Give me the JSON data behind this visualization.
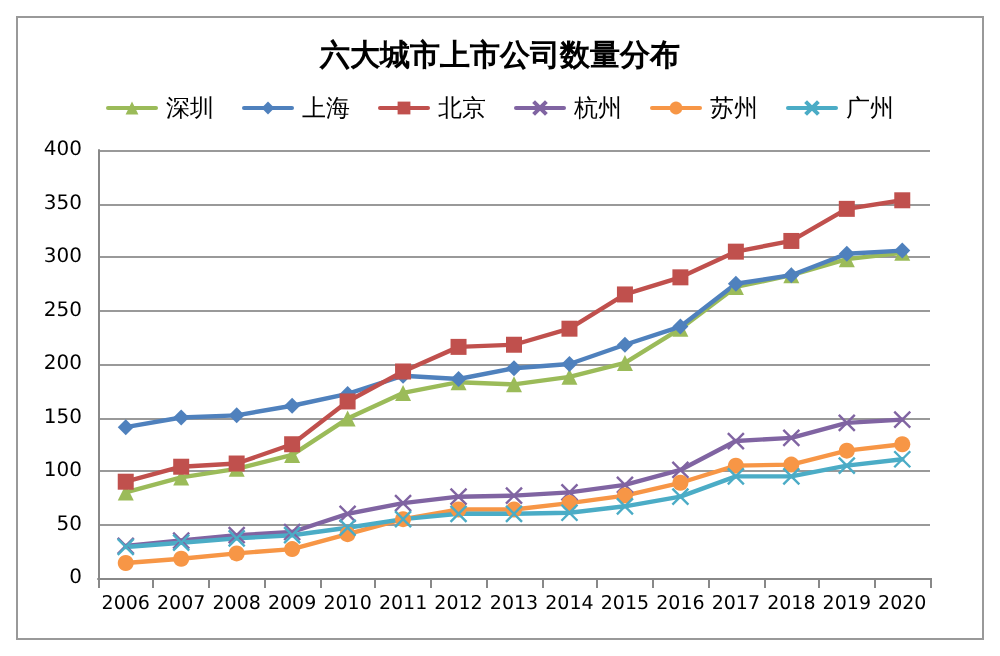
{
  "chart_data": {
    "type": "line",
    "title": "六大城市上市公司数量分布",
    "categories": [
      "2006",
      "2007",
      "2008",
      "2009",
      "2010",
      "2011",
      "2012",
      "2013",
      "2014",
      "2015",
      "2016",
      "2017",
      "2018",
      "2019",
      "2020"
    ],
    "series": [
      {
        "name": "深圳",
        "color": "#9bbb59",
        "marker": "triangle",
        "values": [
          80,
          94,
          102,
          115,
          149,
          173,
          183,
          181,
          188,
          201,
          233,
          272,
          283,
          298,
          304
        ]
      },
      {
        "name": "上海",
        "color": "#4f81bd",
        "marker": "diamond",
        "values": [
          141,
          150,
          152,
          161,
          172,
          189,
          186,
          196,
          200,
          218,
          235,
          275,
          283,
          303,
          306
        ]
      },
      {
        "name": "北京",
        "color": "#c0504d",
        "marker": "square",
        "values": [
          90,
          104,
          107,
          125,
          165,
          193,
          216,
          218,
          233,
          265,
          281,
          305,
          315,
          345,
          353
        ]
      },
      {
        "name": "杭州",
        "color": "#8064a2",
        "marker": "cross",
        "values": [
          30,
          35,
          40,
          43,
          60,
          70,
          76,
          77,
          80,
          87,
          101,
          128,
          131,
          145,
          148
        ]
      },
      {
        "name": "苏州",
        "color": "#f79646",
        "marker": "circle",
        "values": [
          14,
          18,
          23,
          27,
          41,
          55,
          64,
          64,
          70,
          77,
          89,
          105,
          106,
          119,
          125
        ]
      },
      {
        "name": "广州",
        "color": "#4bacc6",
        "marker": "cross",
        "values": [
          29,
          33,
          37,
          40,
          47,
          55,
          60,
          60,
          61,
          67,
          76,
          95,
          95,
          105,
          111
        ]
      }
    ],
    "ylim": [
      0,
      400
    ],
    "yticks": [
      0,
      50,
      100,
      150,
      200,
      250,
      300,
      350,
      400
    ],
    "grid": "y",
    "legend": "top",
    "line_style": "solid"
  }
}
